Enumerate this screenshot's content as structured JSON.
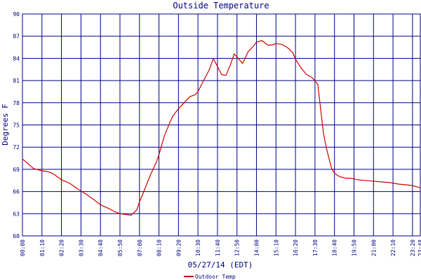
{
  "chart_data": {
    "type": "line",
    "title": "Outside Temperature",
    "xlabel": "05/27/14 (EDT)",
    "ylabel": "Degrees F",
    "x_ticks": [
      "00:00",
      "01:10",
      "02:20",
      "03:30",
      "04:40",
      "05:50",
      "07:00",
      "08:10",
      "09:20",
      "10:30",
      "11:40",
      "12:50",
      "14:00",
      "15:10",
      "16:20",
      "17:30",
      "18:40",
      "19:50",
      "21:00",
      "22:10",
      "23:20",
      "23:48"
    ],
    "y_ticks": [
      60,
      63,
      66,
      69,
      72,
      75,
      78,
      81,
      84,
      87,
      90
    ],
    "ylim": [
      60,
      90
    ],
    "xlim_minutes": [
      0,
      1428
    ],
    "grid": true,
    "series": [
      {
        "name": "Outdoor Temp",
        "color": "#cc0000",
        "x": [
          "00:00",
          "00:40",
          "01:10",
          "01:30",
          "01:50",
          "02:20",
          "02:50",
          "03:20",
          "03:50",
          "04:20",
          "04:40",
          "05:10",
          "05:30",
          "05:50",
          "06:10",
          "06:30",
          "06:50",
          "07:00",
          "07:20",
          "07:40",
          "08:00",
          "08:10",
          "08:30",
          "08:50",
          "09:00",
          "09:20",
          "09:40",
          "10:00",
          "10:20",
          "10:30",
          "10:50",
          "11:10",
          "11:25",
          "11:40",
          "11:55",
          "12:10",
          "12:25",
          "12:40",
          "12:50",
          "13:10",
          "13:30",
          "13:50",
          "14:00",
          "14:20",
          "14:40",
          "14:55",
          "15:10",
          "15:30",
          "15:50",
          "16:10",
          "16:20",
          "16:40",
          "17:00",
          "17:20",
          "17:40",
          "18:00",
          "18:10",
          "18:20",
          "18:30",
          "18:40",
          "18:50",
          "19:00",
          "19:20",
          "19:40",
          "20:00",
          "20:30",
          "21:00",
          "21:30",
          "22:00",
          "22:30",
          "23:00",
          "23:20",
          "23:48"
        ],
        "y": [
          70.4,
          69.1,
          68.8,
          68.7,
          68.4,
          67.6,
          67.1,
          66.3,
          65.6,
          64.8,
          64.2,
          63.7,
          63.3,
          63.0,
          62.9,
          62.8,
          63.5,
          64.6,
          66.4,
          68.3,
          69.9,
          71.0,
          73.6,
          75.4,
          76.2,
          77.2,
          78.0,
          78.8,
          79.1,
          79.5,
          81.0,
          82.4,
          84.0,
          82.9,
          81.8,
          81.7,
          83.0,
          84.6,
          84.2,
          83.3,
          84.9,
          85.7,
          86.2,
          86.4,
          85.8,
          85.8,
          86.0,
          85.9,
          85.5,
          84.8,
          83.9,
          82.7,
          81.8,
          81.4,
          80.5,
          74.0,
          72.0,
          70.5,
          69.1,
          68.5,
          68.2,
          68.0,
          67.8,
          67.8,
          67.6,
          67.5,
          67.4,
          67.3,
          67.2,
          67.0,
          66.9,
          66.8,
          66.5
        ]
      }
    ],
    "legend": "bottom-center"
  }
}
